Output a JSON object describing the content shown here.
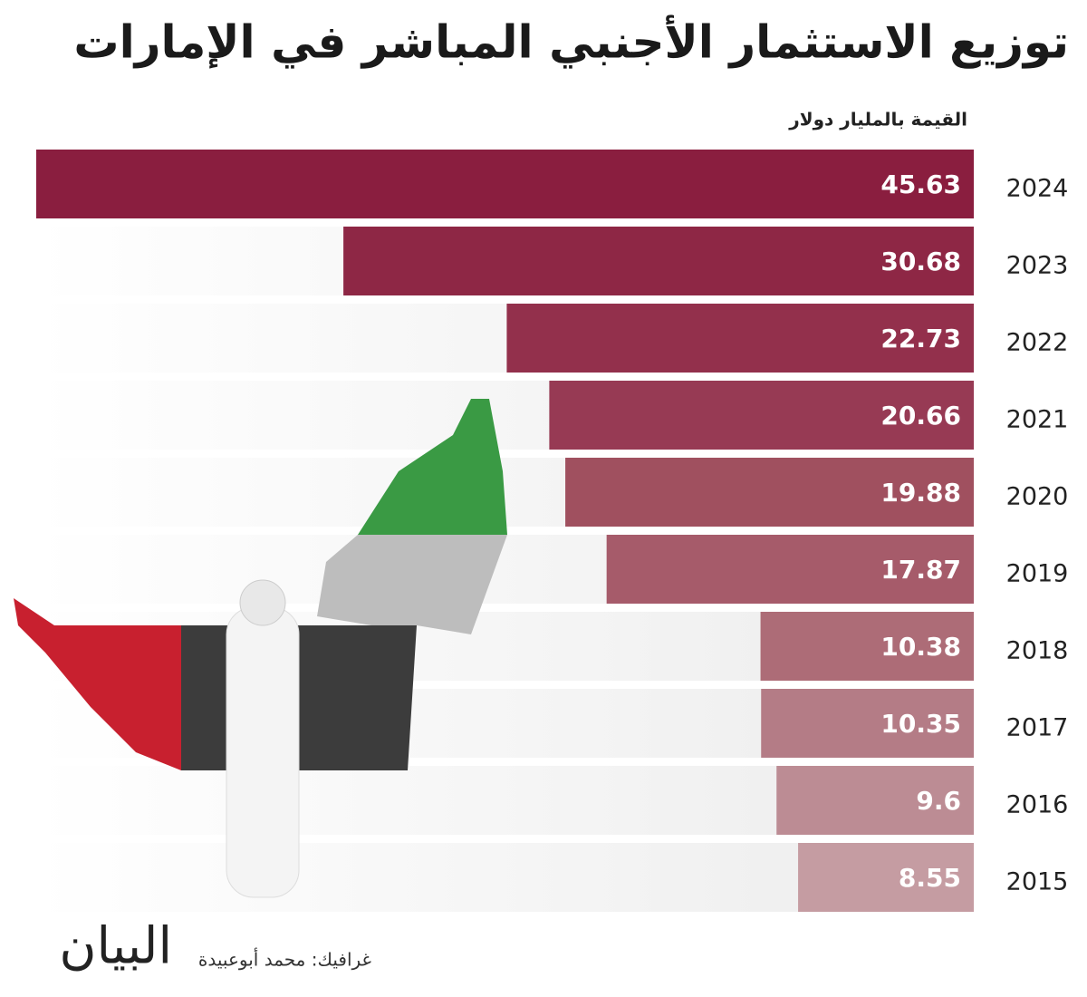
{
  "chart_data": {
    "type": "hbar",
    "title": "توزيع الاستثمار الأجنبي المباشر في الإمارات",
    "subtitle": "القيمة بالمليار دولار",
    "categories": [
      "2024",
      "2023",
      "2022",
      "2021",
      "2020",
      "2019",
      "2018",
      "2017",
      "2016",
      "2015"
    ],
    "values": [
      45.63,
      30.68,
      22.73,
      20.66,
      19.88,
      17.87,
      10.38,
      10.35,
      9.6,
      8.55
    ],
    "colors": [
      "#8a1e3f",
      "#8e2745",
      "#93304c",
      "#973a54",
      "#a0505f",
      "#a65b6a",
      "#ad6c77",
      "#b47c86",
      "#bc8c94",
      "#c59ca2"
    ],
    "credit": "غرافيك: محمد أبوعبيدة",
    "logo": "البيان"
  }
}
